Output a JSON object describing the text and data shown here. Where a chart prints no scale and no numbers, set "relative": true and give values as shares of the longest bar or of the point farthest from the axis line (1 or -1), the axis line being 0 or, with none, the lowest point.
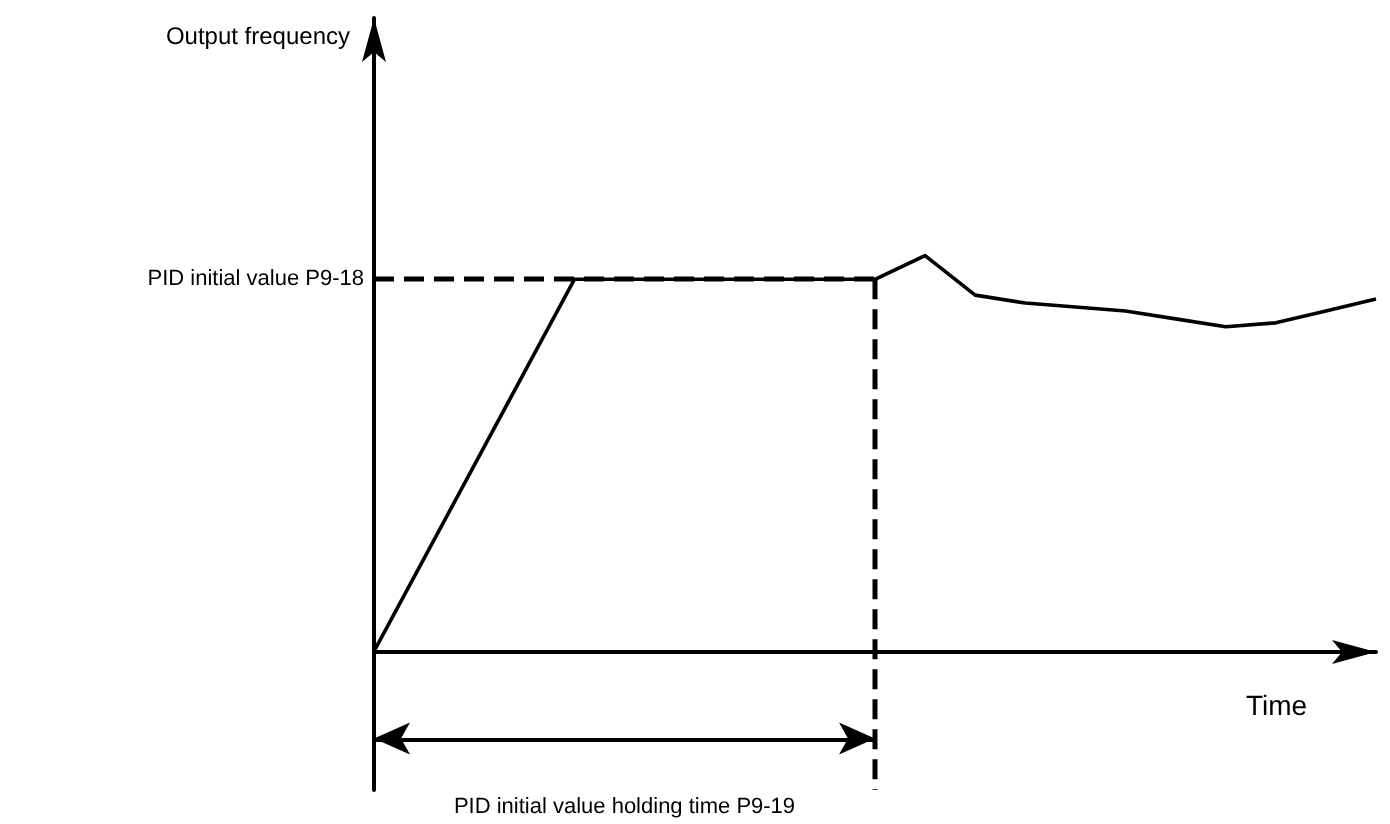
{
  "chart_data": {
    "type": "line",
    "relative": true,
    "xlabel": "Time",
    "marker": "none",
    "categories": [
      null,
      null,
      null,
      null,
      null,
      null,
      null,
      null,
      null,
      null,
      null,
      null,
      null,
      null,
      null,
      null,
      null,
      null,
      null,
      null,
      null
    ],
    "series": [
      {
        "color": "#000000",
        "values": [
          0,
          0.235,
          0.47,
          0.705,
          0.94,
          0.94,
          0.94,
          0.94,
          0.94,
          0.94,
          0.94,
          1,
          0.9,
          0.88,
          0.87,
          0.86,
          0.84,
          0.82,
          0.83,
          0.86,
          0.89
        ]
      }
    ],
    "ref_lines": [
      {
        "axis": "y",
        "value": 0.94,
        "label": "PID initial value P9-18",
        "line_style": "dashed"
      }
    ],
    "annotations": [
      "Output frequency",
      "PID initial value holding time P9-19"
    ]
  }
}
